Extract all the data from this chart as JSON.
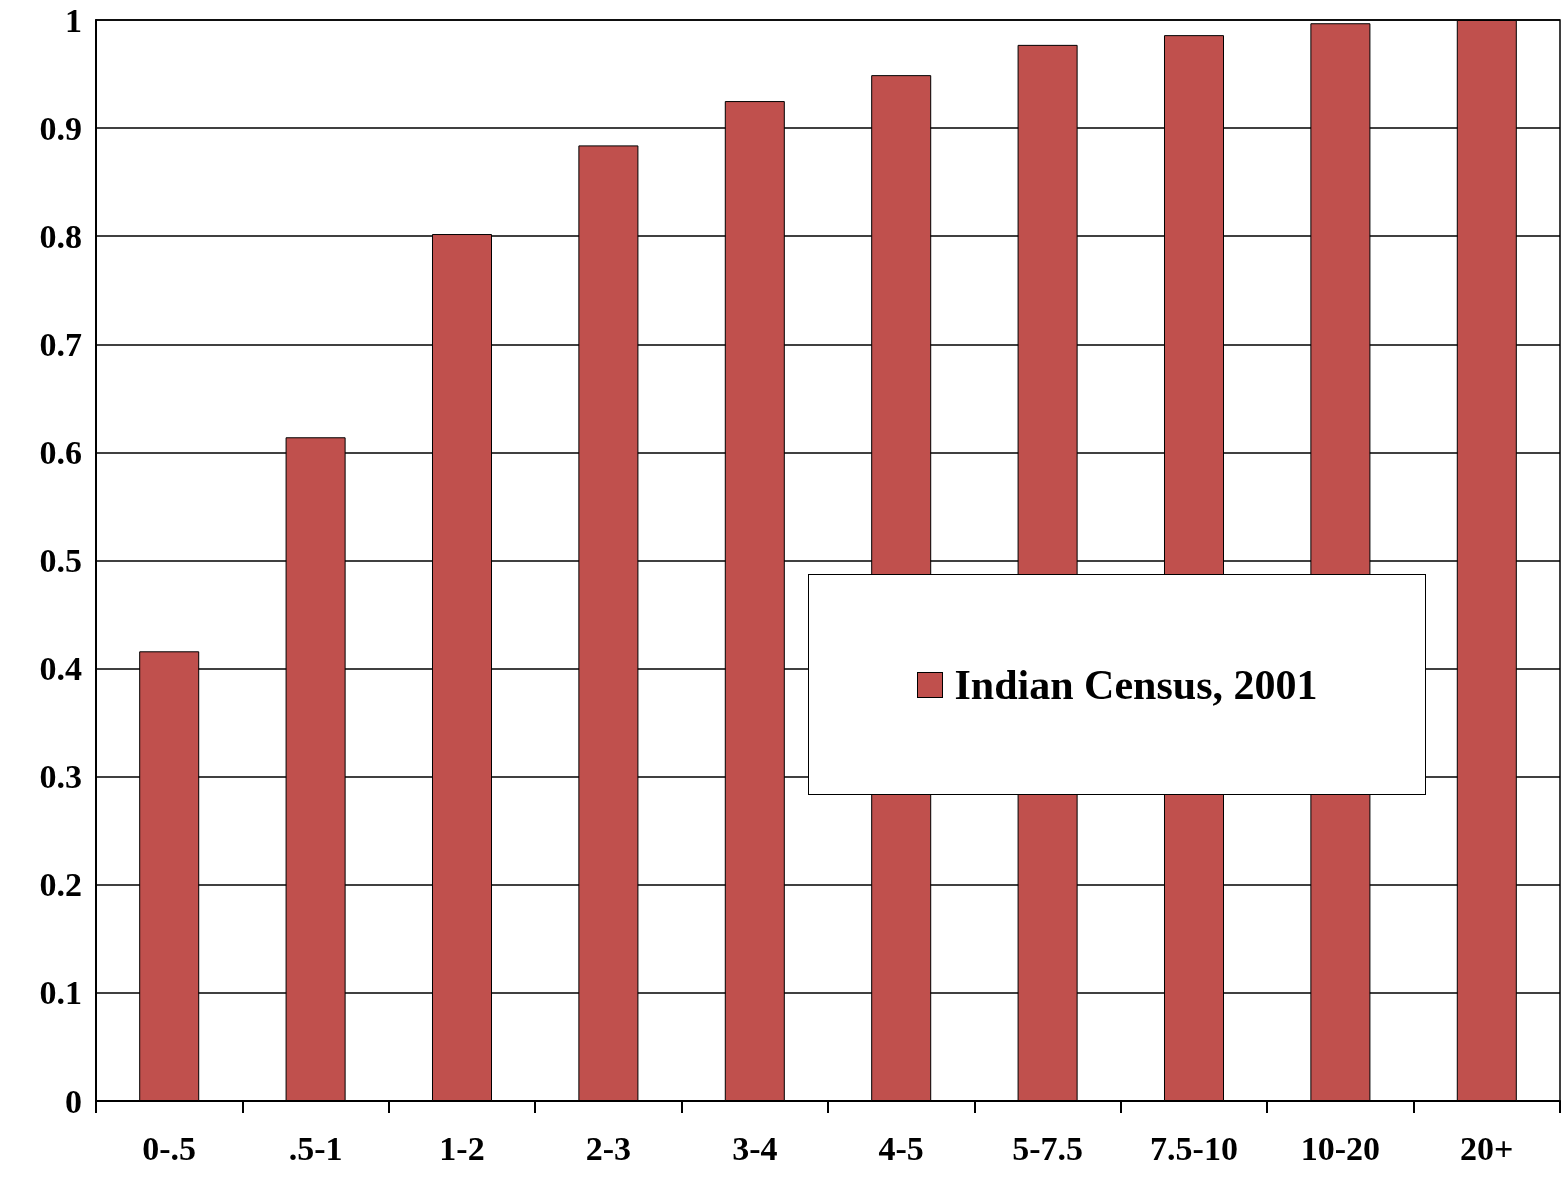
{
  "chart_data": {
    "type": "bar",
    "categories": [
      "0-.5",
      ".5-1",
      "1-2",
      "2-3",
      "3-4",
      "4-5",
      "5-7.5",
      "7.5-10",
      "10-20",
      "20+"
    ],
    "series": [
      {
        "name": "Indian Census, 2001",
        "color": "#c0504d",
        "values": [
          0.416,
          0.614,
          0.802,
          0.884,
          0.925,
          0.949,
          0.977,
          0.986,
          0.997,
          1.0
        ]
      }
    ],
    "ylim": [
      0,
      1
    ],
    "yticks": [
      0,
      0.1,
      0.2,
      0.3,
      0.4,
      0.5,
      0.6,
      0.7,
      0.8,
      0.9,
      1
    ],
    "grid": "y",
    "legend": "right"
  }
}
